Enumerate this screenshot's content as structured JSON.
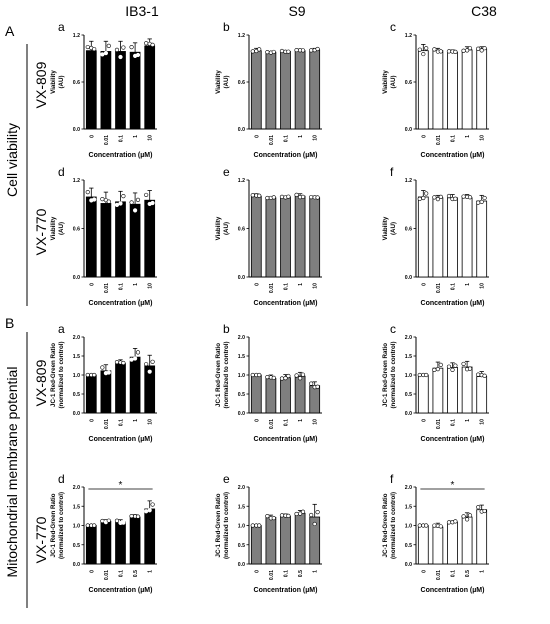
{
  "figure": {
    "section_a": "A",
    "section_b": "B",
    "columns": [
      "IB3-1",
      "S9",
      "C38"
    ],
    "group_a": "Cell viability",
    "group_b": "Mitochondrial membrane potential",
    "row_labels": [
      "VX-809",
      "VX-770",
      "VX-809",
      "VX-770"
    ]
  },
  "colors": {
    "ib3": "#000000",
    "s9": "#7f7f7f",
    "c38": "#ffffff"
  },
  "chart_data": [
    {
      "panel": "A-a",
      "letter": "a",
      "type": "bar",
      "x_label": "Concentration (µM)",
      "y_label": "Viability (AU)",
      "categories": [
        "0",
        "0.01",
        "0.1",
        "1",
        "10"
      ],
      "values": [
        1.0,
        0.99,
        0.99,
        0.98,
        1.06
      ],
      "error": [
        0.12,
        0.13,
        0.13,
        0.12,
        0.09
      ],
      "ylim": [
        0,
        1.2
      ],
      "yticks": [
        "0.0",
        "0.6",
        "1.2"
      ],
      "fill": "#000000"
    },
    {
      "panel": "A-b",
      "letter": "b",
      "type": "bar",
      "x_label": "Concentration (µM)",
      "y_label": "Viability (AU)",
      "categories": [
        "0",
        "0.01",
        "0.1",
        "1",
        "10"
      ],
      "values": [
        1.0,
        0.98,
        0.99,
        1.0,
        1.01
      ],
      "error": [
        0.03,
        0.01,
        0.01,
        0.02,
        0.02
      ],
      "ylim": [
        0,
        1.2
      ],
      "yticks": [
        "0.0",
        "0.6",
        "1.2"
      ],
      "fill": "#7f7f7f"
    },
    {
      "panel": "A-c",
      "letter": "c",
      "type": "bar",
      "x_label": "Concentration (µM)",
      "y_label": "Viability (AU)",
      "categories": [
        "0",
        "0.01",
        "0.1",
        "1",
        "10"
      ],
      "values": [
        1.0,
        1.0,
        0.98,
        1.01,
        1.02
      ],
      "error": [
        0.08,
        0.03,
        0.03,
        0.04,
        0.03
      ],
      "ylim": [
        0,
        1.2
      ],
      "yticks": [
        "0.0",
        "0.6",
        "1.2"
      ],
      "fill": "#ffffff"
    },
    {
      "panel": "A-d",
      "letter": "d",
      "type": "bar",
      "x_label": "Concentration (µM)",
      "y_label": "Viability (AU)",
      "categories": [
        "0",
        "0.01",
        "0.1",
        "1",
        "10"
      ],
      "values": [
        0.99,
        0.91,
        0.93,
        0.9,
        0.95
      ],
      "error": [
        0.11,
        0.14,
        0.13,
        0.14,
        0.12
      ],
      "ylim": [
        0,
        1.2
      ],
      "yticks": [
        "0.0",
        "0.6",
        "1.2"
      ],
      "fill": "#000000"
    },
    {
      "panel": "A-e",
      "letter": "e",
      "type": "bar",
      "x_label": "Concentration (µM)",
      "y_label": "Viability (AU)",
      "categories": [
        "0",
        "0.01",
        "0.1",
        "1",
        "10"
      ],
      "values": [
        1.0,
        0.98,
        0.99,
        1.0,
        0.98
      ],
      "error": [
        0.03,
        0.01,
        0.01,
        0.03,
        0.02
      ],
      "ylim": [
        0,
        1.2
      ],
      "yticks": [
        "0.0",
        "0.6",
        "1.2"
      ],
      "fill": "#7f7f7f"
    },
    {
      "panel": "A-f",
      "letter": "f",
      "type": "bar",
      "x_label": "Concentration (µM)",
      "y_label": "Viability (AU)",
      "categories": [
        "0",
        "0.01",
        "0.1",
        "1",
        "10"
      ],
      "values": [
        0.99,
        0.98,
        0.98,
        0.98,
        0.94
      ],
      "error": [
        0.08,
        0.03,
        0.04,
        0.04,
        0.07
      ],
      "ylim": [
        0,
        1.2
      ],
      "yticks": [
        "0.0",
        "0.6",
        "1.2"
      ],
      "fill": "#ffffff"
    },
    {
      "panel": "B-a",
      "letter": "a",
      "type": "bar",
      "x_label": "Concentration (µM)",
      "y_label": "JC-1 Red-Green Ratio (normalized to control)",
      "categories": [
        "0",
        "0.01",
        "0.1",
        "1",
        "10"
      ],
      "values": [
        1.0,
        1.11,
        1.3,
        1.47,
        1.24
      ],
      "error": [
        0.0,
        0.16,
        0.1,
        0.23,
        0.28
      ],
      "ylim": [
        0,
        2.0
      ],
      "yticks": [
        "0.0",
        "0.5",
        "1.0",
        "1.5",
        "2.0"
      ],
      "fill": "#000000"
    },
    {
      "panel": "B-b",
      "letter": "b",
      "type": "bar",
      "x_label": "Concentration (µM)",
      "y_label": "JC-1 Red-Green Ratio (normalized to control)",
      "categories": [
        "0",
        "0.01",
        "0.1",
        "1",
        "10"
      ],
      "values": [
        1.0,
        0.91,
        0.93,
        0.97,
        0.72
      ],
      "error": [
        0.0,
        0.09,
        0.08,
        0.1,
        0.1
      ],
      "ylim": [
        0,
        2.0
      ],
      "yticks": [
        "0.0",
        "0.5",
        "1.0",
        "1.5",
        "2.0"
      ],
      "fill": "#7f7f7f"
    },
    {
      "panel": "B-c",
      "letter": "c",
      "type": "bar",
      "x_label": "Concentration (µM)",
      "y_label": "JC-1 Red-Green Ratio (normalized to control)",
      "categories": [
        "0",
        "0.01",
        "0.1",
        "1",
        "10"
      ],
      "values": [
        1.0,
        1.18,
        1.2,
        1.21,
        0.96
      ],
      "error": [
        0.0,
        0.16,
        0.12,
        0.15,
        0.13
      ],
      "ylim": [
        0,
        2.0
      ],
      "yticks": [
        "0.0",
        "0.5",
        "1.0",
        "1.5",
        "2.0"
      ],
      "fill": "#ffffff"
    },
    {
      "panel": "B-d",
      "letter": "d",
      "type": "bar",
      "x_label": "Concentration (µM)",
      "y_label": "JC-1 Red-Green Ratio (normalized to control)",
      "categories": [
        "0",
        "0.01",
        "0.1",
        "0.5",
        "1"
      ],
      "values": [
        1.0,
        1.11,
        1.09,
        1.22,
        1.43
      ],
      "error": [
        0.0,
        0.04,
        0.06,
        0.06,
        0.21
      ],
      "ylim": [
        0,
        2.0
      ],
      "yticks": [
        "0.0",
        "0.5",
        "1.0",
        "1.5",
        "2.0"
      ],
      "fill": "#000000",
      "significance": {
        "from": "0",
        "to": "1",
        "label": "*"
      }
    },
    {
      "panel": "B-e",
      "letter": "e",
      "type": "bar",
      "x_label": "Concentration (µM)",
      "y_label": "JC-1 Red-Green Ratio (normalized to control)",
      "categories": [
        "0",
        "0.01",
        "0.1",
        "0.5",
        "1"
      ],
      "values": [
        1.0,
        1.21,
        1.24,
        1.32,
        1.22
      ],
      "error": [
        0.0,
        0.06,
        0.06,
        0.07,
        0.33
      ],
      "ylim": [
        0,
        2.0
      ],
      "yticks": [
        "0.0",
        "0.5",
        "1.0",
        "1.5",
        "2.0"
      ],
      "fill": "#7f7f7f"
    },
    {
      "panel": "B-f",
      "letter": "f",
      "type": "bar",
      "x_label": "Concentration (µM)",
      "y_label": "JC-1 Red-Green Ratio (normalized to control)",
      "categories": [
        "0",
        "0.01",
        "0.1",
        "0.5",
        "1"
      ],
      "values": [
        1.0,
        0.96,
        1.09,
        1.22,
        1.41
      ],
      "error": [
        0.0,
        0.1,
        0.03,
        0.11,
        0.12
      ],
      "ylim": [
        0,
        2.0
      ],
      "yticks": [
        "0.0",
        "0.5",
        "1.0",
        "1.5",
        "2.0"
      ],
      "fill": "#ffffff",
      "significance": {
        "from": "0",
        "to": "1",
        "label": "*"
      }
    }
  ]
}
